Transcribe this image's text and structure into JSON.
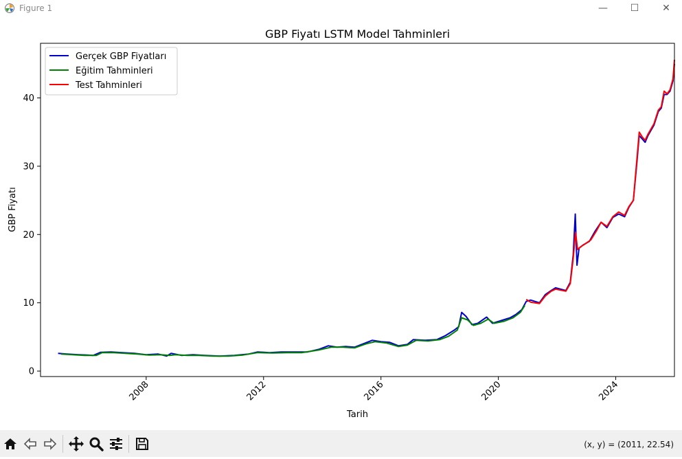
{
  "window": {
    "title": "Figure 1",
    "controls": {
      "minimize": "—",
      "maximize": "☐",
      "close": "✕"
    }
  },
  "toolbar": {
    "buttons": [
      {
        "name": "home-button",
        "icon": "home-icon"
      },
      {
        "name": "back-button",
        "icon": "arrow-left-icon"
      },
      {
        "name": "forward-button",
        "icon": "arrow-right-icon"
      },
      {
        "name": "pan-button",
        "icon": "move-icon"
      },
      {
        "name": "zoom-button",
        "icon": "magnifier-icon"
      },
      {
        "name": "configure-button",
        "icon": "sliders-icon"
      },
      {
        "name": "save-button",
        "icon": "save-icon"
      }
    ],
    "coords": "(x, y) = (2011, 22.54)"
  },
  "chart_data": {
    "type": "line",
    "title": "GBP Fiyatı LSTM Model Tahminleri",
    "xlabel": "Tarih",
    "ylabel": "GBP Fiyatı",
    "xlim": [
      2004.4,
      2026.0
    ],
    "ylim": [
      -0.8,
      48.0
    ],
    "xticks": [
      2008,
      2012,
      2016,
      2020,
      2024
    ],
    "yticks": [
      0,
      10,
      20,
      30,
      40
    ],
    "grid": false,
    "legend": "top-left",
    "series": [
      {
        "name": "Gerçek GBP Fiyatları",
        "color": "#0000cc",
        "points": [
          [
            2005.0,
            2.6
          ],
          [
            2005.3,
            2.5
          ],
          [
            2005.7,
            2.4
          ],
          [
            2006.0,
            2.35
          ],
          [
            2006.2,
            2.3
          ],
          [
            2006.45,
            2.75
          ],
          [
            2006.8,
            2.8
          ],
          [
            2007.2,
            2.7
          ],
          [
            2007.6,
            2.6
          ],
          [
            2008.0,
            2.4
          ],
          [
            2008.4,
            2.5
          ],
          [
            2008.7,
            2.2
          ],
          [
            2008.85,
            2.6
          ],
          [
            2009.2,
            2.3
          ],
          [
            2009.6,
            2.4
          ],
          [
            2010.0,
            2.3
          ],
          [
            2010.5,
            2.2
          ],
          [
            2011.0,
            2.3
          ],
          [
            2011.5,
            2.5
          ],
          [
            2011.8,
            2.8
          ],
          [
            2012.2,
            2.7
          ],
          [
            2012.6,
            2.8
          ],
          [
            2013.0,
            2.8
          ],
          [
            2013.5,
            2.8
          ],
          [
            2013.9,
            3.2
          ],
          [
            2014.2,
            3.7
          ],
          [
            2014.5,
            3.5
          ],
          [
            2014.8,
            3.6
          ],
          [
            2015.1,
            3.5
          ],
          [
            2015.4,
            4.0
          ],
          [
            2015.7,
            4.5
          ],
          [
            2016.0,
            4.3
          ],
          [
            2016.3,
            4.2
          ],
          [
            2016.6,
            3.7
          ],
          [
            2016.9,
            3.9
          ],
          [
            2017.1,
            4.6
          ],
          [
            2017.5,
            4.5
          ],
          [
            2017.9,
            4.6
          ],
          [
            2018.2,
            5.2
          ],
          [
            2018.5,
            6.0
          ],
          [
            2018.65,
            6.5
          ],
          [
            2018.75,
            8.6
          ],
          [
            2018.9,
            8.0
          ],
          [
            2019.1,
            6.8
          ],
          [
            2019.3,
            7.0
          ],
          [
            2019.6,
            7.9
          ],
          [
            2019.8,
            7.0
          ],
          [
            2020.1,
            7.4
          ],
          [
            2020.4,
            7.8
          ],
          [
            2020.6,
            8.3
          ],
          [
            2020.8,
            9.0
          ],
          [
            2020.95,
            10.2
          ],
          [
            2021.1,
            10.4
          ],
          [
            2021.4,
            10.0
          ],
          [
            2021.6,
            11.2
          ],
          [
            2021.8,
            11.8
          ],
          [
            2021.95,
            12.2
          ],
          [
            2022.3,
            11.8
          ],
          [
            2022.45,
            13.0
          ],
          [
            2022.55,
            17.0
          ],
          [
            2022.62,
            23.0
          ],
          [
            2022.68,
            15.5
          ],
          [
            2022.75,
            18.0
          ],
          [
            2022.9,
            18.5
          ],
          [
            2023.1,
            19.0
          ],
          [
            2023.3,
            20.5
          ],
          [
            2023.5,
            21.8
          ],
          [
            2023.7,
            21.0
          ],
          [
            2023.9,
            22.5
          ],
          [
            2024.1,
            23.0
          ],
          [
            2024.3,
            22.6
          ],
          [
            2024.45,
            24.0
          ],
          [
            2024.6,
            25.0
          ],
          [
            2024.72,
            30.5
          ],
          [
            2024.8,
            34.5
          ],
          [
            2024.9,
            34.0
          ],
          [
            2025.0,
            33.5
          ],
          [
            2025.1,
            34.5
          ],
          [
            2025.3,
            36.0
          ],
          [
            2025.45,
            38.0
          ],
          [
            2025.55,
            38.5
          ],
          [
            2025.65,
            40.5
          ],
          [
            2025.75,
            40.5
          ],
          [
            2025.85,
            41.0
          ],
          [
            2025.95,
            42.5
          ],
          [
            2026.0,
            45.0
          ]
        ]
      },
      {
        "name": "Eğitim Tahminleri",
        "color": "#008000",
        "points": [
          [
            2005.1,
            2.5
          ],
          [
            2005.5,
            2.4
          ],
          [
            2005.9,
            2.3
          ],
          [
            2006.3,
            2.3
          ],
          [
            2006.5,
            2.7
          ],
          [
            2006.9,
            2.7
          ],
          [
            2007.3,
            2.6
          ],
          [
            2007.7,
            2.5
          ],
          [
            2008.1,
            2.35
          ],
          [
            2008.5,
            2.4
          ],
          [
            2008.8,
            2.3
          ],
          [
            2009.0,
            2.4
          ],
          [
            2009.4,
            2.3
          ],
          [
            2009.8,
            2.3
          ],
          [
            2010.3,
            2.2
          ],
          [
            2010.8,
            2.2
          ],
          [
            2011.3,
            2.35
          ],
          [
            2011.8,
            2.7
          ],
          [
            2012.3,
            2.65
          ],
          [
            2012.8,
            2.7
          ],
          [
            2013.3,
            2.7
          ],
          [
            2013.9,
            3.1
          ],
          [
            2014.3,
            3.5
          ],
          [
            2014.7,
            3.5
          ],
          [
            2015.1,
            3.4
          ],
          [
            2015.5,
            4.0
          ],
          [
            2015.8,
            4.3
          ],
          [
            2016.2,
            4.1
          ],
          [
            2016.6,
            3.6
          ],
          [
            2016.9,
            3.8
          ],
          [
            2017.2,
            4.5
          ],
          [
            2017.6,
            4.4
          ],
          [
            2018.0,
            4.6
          ],
          [
            2018.3,
            5.1
          ],
          [
            2018.6,
            6.0
          ],
          [
            2018.75,
            7.8
          ],
          [
            2018.95,
            7.5
          ],
          [
            2019.15,
            6.7
          ],
          [
            2019.4,
            7.0
          ],
          [
            2019.65,
            7.6
          ],
          [
            2019.85,
            7.0
          ],
          [
            2020.2,
            7.3
          ],
          [
            2020.5,
            7.8
          ],
          [
            2020.75,
            8.6
          ],
          [
            2020.9,
            9.6
          ]
        ]
      },
      {
        "name": "Test Tahminleri",
        "color": "#ff0000",
        "points": [
          [
            2020.95,
            10.5
          ],
          [
            2021.1,
            10.1
          ],
          [
            2021.4,
            9.9
          ],
          [
            2021.6,
            11.0
          ],
          [
            2021.8,
            11.7
          ],
          [
            2021.95,
            12.0
          ],
          [
            2022.3,
            11.7
          ],
          [
            2022.45,
            12.8
          ],
          [
            2022.55,
            16.5
          ],
          [
            2022.63,
            20.3
          ],
          [
            2022.7,
            17.8
          ],
          [
            2022.8,
            18.2
          ],
          [
            2022.95,
            18.6
          ],
          [
            2023.15,
            19.2
          ],
          [
            2023.35,
            20.6
          ],
          [
            2023.5,
            21.8
          ],
          [
            2023.7,
            21.2
          ],
          [
            2023.9,
            22.6
          ],
          [
            2024.1,
            23.3
          ],
          [
            2024.3,
            22.8
          ],
          [
            2024.45,
            24.1
          ],
          [
            2024.6,
            25.0
          ],
          [
            2024.72,
            31.0
          ],
          [
            2024.8,
            35.0
          ],
          [
            2024.9,
            34.3
          ],
          [
            2025.0,
            33.8
          ],
          [
            2025.1,
            34.7
          ],
          [
            2025.3,
            36.2
          ],
          [
            2025.45,
            38.2
          ],
          [
            2025.55,
            38.7
          ],
          [
            2025.65,
            41.0
          ],
          [
            2025.75,
            40.6
          ],
          [
            2025.85,
            41.2
          ],
          [
            2025.95,
            42.8
          ],
          [
            2026.0,
            45.6
          ]
        ]
      }
    ]
  }
}
